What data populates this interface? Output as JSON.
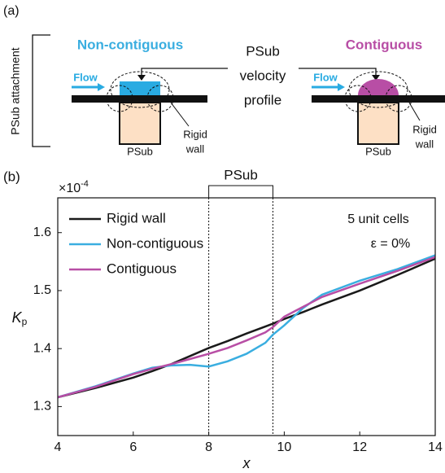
{
  "diagram": {
    "panel_label": "(a)",
    "side_label": "PSub attachment",
    "left_title": "Non-contiguous",
    "right_title": "Contiguous",
    "center_label": [
      "PSub",
      "velocity",
      "profile"
    ],
    "left_flow": "Flow",
    "right_flow": "Flow",
    "left_psub": "PSub",
    "right_psub": "PSub",
    "left_wall": [
      "Rigid",
      "wall"
    ],
    "right_wall": [
      "Rigid",
      "wall"
    ]
  },
  "chart_data": {
    "type": "line",
    "panel_label": "(b)",
    "xlabel": "x",
    "ylabel": "K",
    "ylabel_sub": "p",
    "y_multiplier": "×10",
    "y_multiplier_exp": "-4",
    "annotations": [
      "5 unit cells",
      "ε = 0%"
    ],
    "region": {
      "label": "PSub",
      "x": [
        8,
        9.7
      ]
    },
    "x": [
      4,
      5,
      6,
      6.5,
      7,
      7.5,
      8,
      8.5,
      9,
      9.5,
      9.7,
      10,
      10.5,
      11,
      12,
      13,
      14
    ],
    "series": [
      {
        "name": "Rigid wall",
        "color": "#1a1a1a",
        "values": [
          1.316,
          1.332,
          1.35,
          1.361,
          1.373,
          1.387,
          1.401,
          1.413,
          1.426,
          1.438,
          1.443,
          1.451,
          1.463,
          1.476,
          1.5,
          1.527,
          1.555
        ]
      },
      {
        "name": "Non-contiguous",
        "color": "#3aaee0",
        "values": [
          1.316,
          1.335,
          1.357,
          1.367,
          1.371,
          1.372,
          1.369,
          1.378,
          1.391,
          1.41,
          1.424,
          1.44,
          1.47,
          1.493,
          1.517,
          1.537,
          1.561
        ]
      },
      {
        "name": "Contiguous",
        "color": "#b84ea5",
        "values": [
          1.316,
          1.334,
          1.356,
          1.365,
          1.373,
          1.382,
          1.391,
          1.401,
          1.414,
          1.428,
          1.437,
          1.455,
          1.472,
          1.489,
          1.512,
          1.534,
          1.558
        ]
      }
    ],
    "xlim": [
      4,
      14
    ],
    "ylim": [
      1.25,
      1.66
    ],
    "xticks": [
      4,
      6,
      8,
      10,
      12,
      14
    ],
    "yticks": [
      1.3,
      1.4,
      1.5,
      1.6
    ]
  }
}
